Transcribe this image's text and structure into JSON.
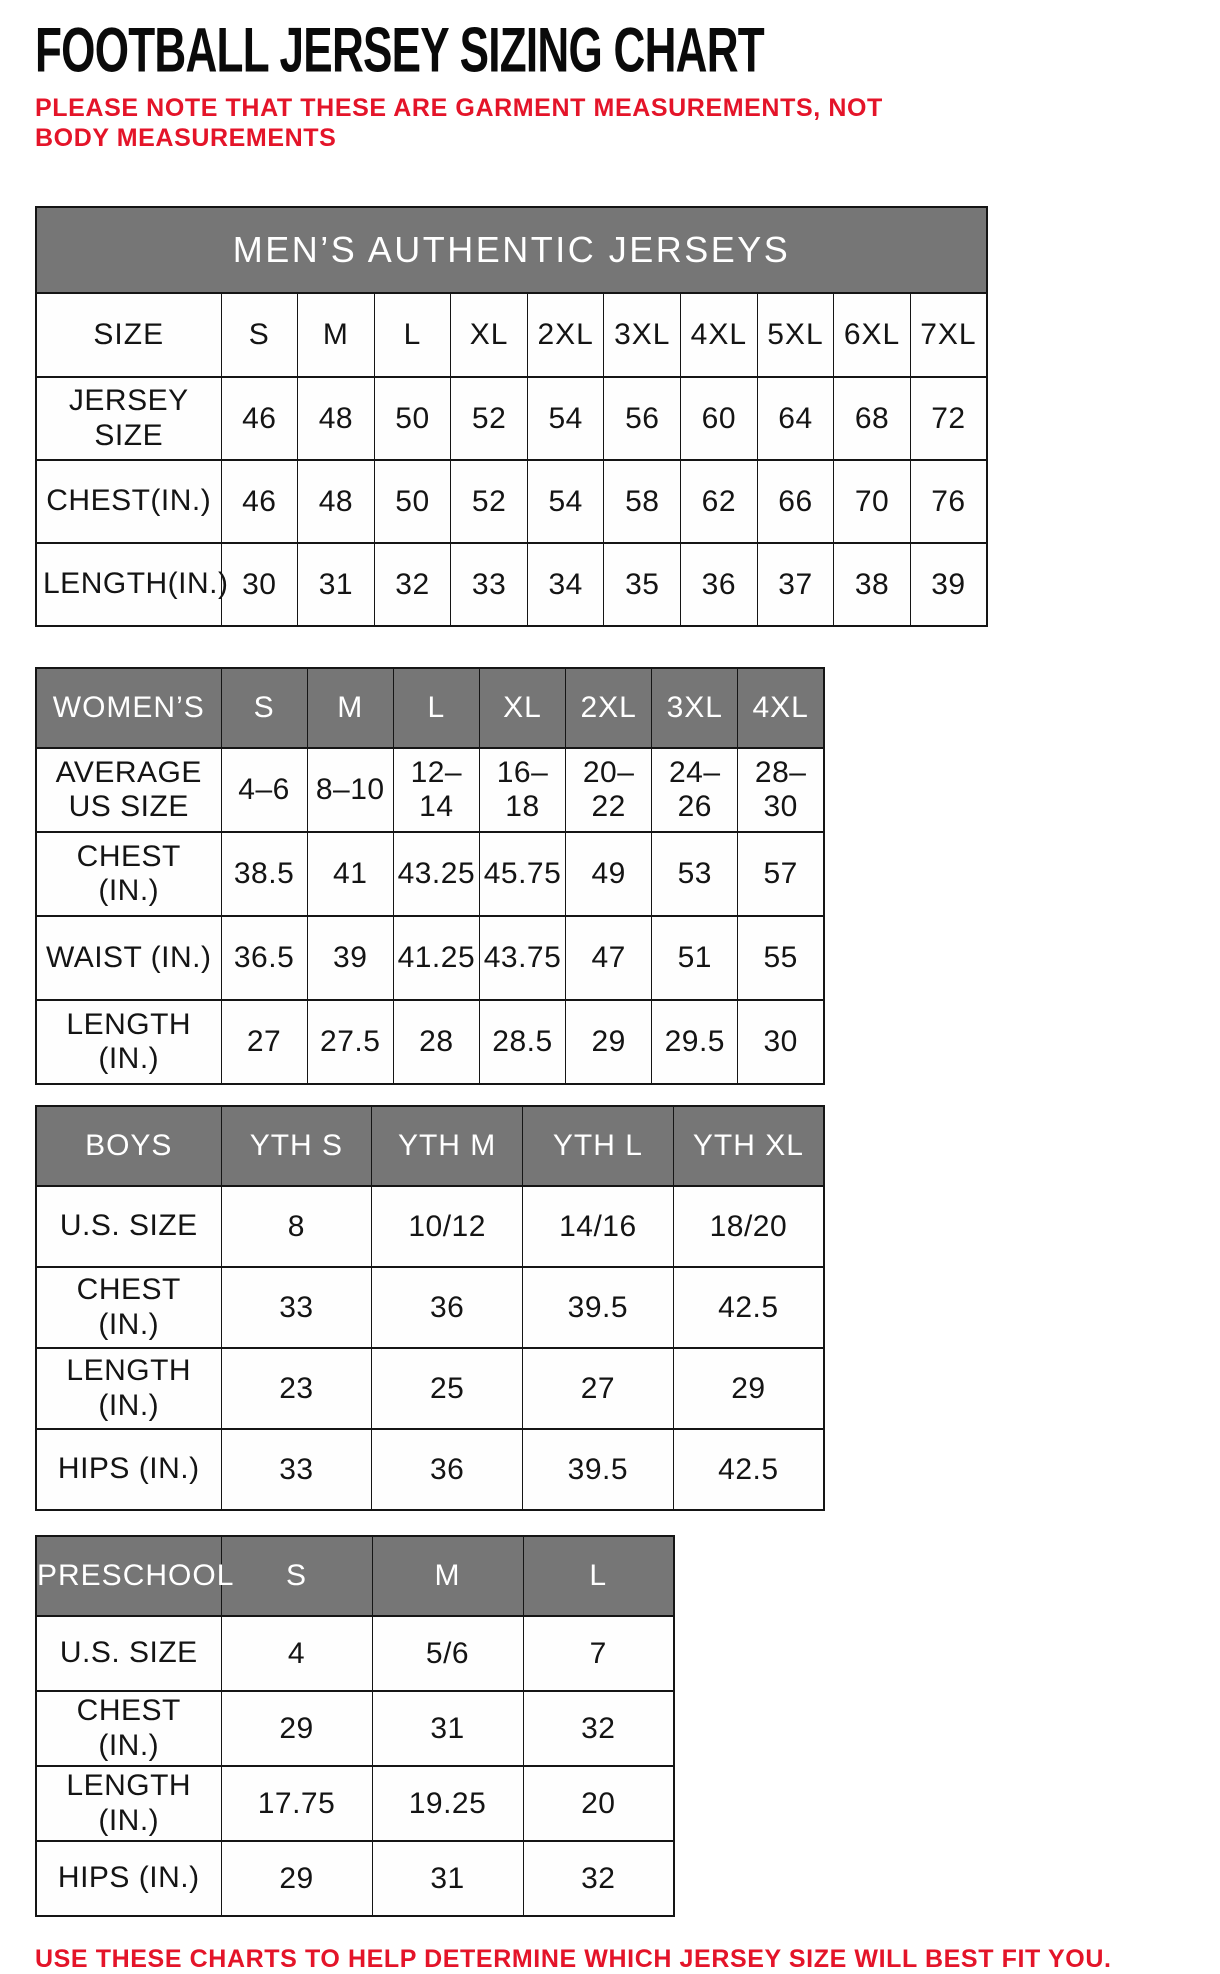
{
  "page": {
    "title": "FOOTBALL JERSEY SIZING CHART",
    "note": "PLEASE NOTE THAT THESE ARE GARMENT MEASUREMENTS, NOT BODY MEASUREMENTS",
    "footer": "USE THESE CHARTS TO HELP DETERMINE WHICH JERSEY SIZE WILL BEST FIT YOU.",
    "colors": {
      "accent_red": "#e41429",
      "header_gray": "#767676",
      "border_black": "#151515",
      "text_black": "#141414"
    }
  },
  "tables": {
    "mens": {
      "banner": "MEN’S AUTHENTIC JERSEYS",
      "header": [
        "SIZE",
        "S",
        "M",
        "L",
        "XL",
        "2XL",
        "3XL",
        "4XL",
        "5XL",
        "6XL",
        "7XL"
      ],
      "rows": [
        {
          "label": "JERSEY SIZE",
          "values": [
            "46",
            "48",
            "50",
            "52",
            "54",
            "56",
            "60",
            "64",
            "68",
            "72"
          ]
        },
        {
          "label": "CHEST(IN.)",
          "values": [
            "46",
            "48",
            "50",
            "52",
            "54",
            "58",
            "62",
            "66",
            "70",
            "76"
          ]
        },
        {
          "label": "LENGTH(IN.)",
          "values": [
            "30",
            "31",
            "32",
            "33",
            "34",
            "35",
            "36",
            "37",
            "38",
            "39"
          ]
        }
      ]
    },
    "womens": {
      "header": [
        "WOMEN’S",
        "S",
        "M",
        "L",
        "XL",
        "2XL",
        "3XL",
        "4XL"
      ],
      "rows": [
        {
          "label": "AVERAGE US SIZE",
          "values": [
            "4–6",
            "8–10",
            "12–14",
            "16–18",
            "20–22",
            "24–26",
            "28–30"
          ]
        },
        {
          "label": "CHEST (IN.)",
          "values": [
            "38.5",
            "41",
            "43.25",
            "45.75",
            "49",
            "53",
            "57"
          ]
        },
        {
          "label": "WAIST (IN.)",
          "values": [
            "36.5",
            "39",
            "41.25",
            "43.75",
            "47",
            "51",
            "55"
          ]
        },
        {
          "label": "LENGTH (IN.)",
          "values": [
            "27",
            "27.5",
            "28",
            "28.5",
            "29",
            "29.5",
            "30"
          ]
        }
      ]
    },
    "boys": {
      "header": [
        "BOYS",
        "YTH S",
        "YTH M",
        "YTH L",
        "YTH XL"
      ],
      "rows": [
        {
          "label": "U.S. SIZE",
          "values": [
            "8",
            "10/12",
            "14/16",
            "18/20"
          ]
        },
        {
          "label": "CHEST (IN.)",
          "values": [
            "33",
            "36",
            "39.5",
            "42.5"
          ]
        },
        {
          "label": "LENGTH (IN.)",
          "values": [
            "23",
            "25",
            "27",
            "29"
          ]
        },
        {
          "label": "HIPS (IN.)",
          "values": [
            "33",
            "36",
            "39.5",
            "42.5"
          ]
        }
      ]
    },
    "preschool": {
      "header": [
        "PRESCHOOL",
        "S",
        "M",
        "L"
      ],
      "rows": [
        {
          "label": "U.S. SIZE",
          "values": [
            "4",
            "5/6",
            "7"
          ]
        },
        {
          "label": "CHEST (IN.)",
          "values": [
            "29",
            "31",
            "32"
          ]
        },
        {
          "label": "LENGTH (IN.)",
          "values": [
            "17.75",
            "19.25",
            "20"
          ]
        },
        {
          "label": "HIPS (IN.)",
          "values": [
            "29",
            "31",
            "32"
          ]
        }
      ]
    }
  }
}
